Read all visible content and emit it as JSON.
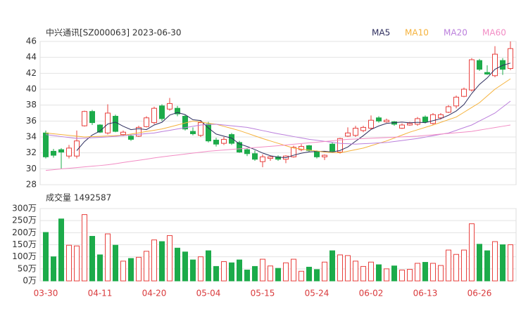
{
  "chart_data": {
    "type": "candlestick",
    "title": "中兴通讯[SZ000063] 2023-06-30",
    "categories": [
      "03-30",
      null,
      null,
      null,
      null,
      null,
      null,
      "04-11",
      null,
      null,
      null,
      null,
      null,
      null,
      "04-20",
      null,
      null,
      null,
      null,
      null,
      null,
      "05-04",
      null,
      null,
      null,
      null,
      null,
      null,
      "05-15",
      null,
      null,
      null,
      null,
      null,
      null,
      "05-24",
      null,
      null,
      null,
      null,
      null,
      null,
      "06-02",
      null,
      null,
      null,
      null,
      null,
      null,
      "06-13",
      null,
      null,
      null,
      null,
      null,
      null,
      "06-26",
      null,
      null,
      null,
      null
    ],
    "open": [
      34.5,
      32.2,
      32.4,
      31.6,
      31.6,
      35.4,
      37.2,
      35.5,
      34.5,
      36.6,
      34.3,
      34.1,
      34.1,
      35.3,
      35.8,
      37.9,
      37.5,
      37.6,
      36.6,
      34.7,
      34.2,
      35.6,
      33.6,
      33.2,
      34.3,
      33.3,
      32.4,
      31.9,
      30.9,
      31.3,
      31.5,
      31.2,
      31.5,
      32.4,
      32.9,
      32.2,
      31.5,
      33.1,
      32.1,
      34.1,
      34.2,
      34.8,
      35.1,
      36.4,
      35.9,
      35.9,
      35.1,
      35.5,
      35.6,
      36.5,
      35.7,
      36.4,
      37.1,
      37.9,
      39.1,
      39.9,
      43.6,
      42.1,
      41.7,
      43.6,
      42.6
    ],
    "high": [
      34.8,
      32.5,
      32.6,
      33.0,
      34.8,
      37.3,
      37.4,
      35.6,
      38.1,
      36.8,
      34.8,
      34.3,
      35.4,
      36.6,
      37.8,
      38.1,
      38.9,
      37.9,
      36.8,
      35.2,
      36.1,
      35.9,
      33.9,
      34.0,
      34.5,
      33.5,
      32.6,
      32.3,
      31.8,
      31.6,
      31.7,
      31.7,
      32.9,
      33.1,
      33.0,
      32.3,
      31.8,
      33.3,
      33.9,
      35.2,
      35.4,
      35.4,
      36.7,
      36.6,
      36.3,
      36.0,
      35.7,
      35.9,
      36.5,
      36.7,
      37.0,
      37.0,
      38.0,
      39.2,
      40.2,
      43.9,
      43.8,
      43.0,
      45.4,
      43.9,
      46.0
    ],
    "low": [
      31.3,
      31.4,
      30.0,
      31.3,
      31.3,
      35.3,
      35.5,
      34.5,
      34.3,
      34.6,
      34.1,
      33.5,
      34.0,
      35.2,
      35.6,
      36.0,
      37.3,
      36.6,
      34.8,
      34.2,
      34.0,
      33.3,
      32.8,
      33.0,
      33.0,
      32.0,
      31.6,
      31.0,
      30.2,
      31.0,
      31.0,
      30.7,
      31.4,
      32.2,
      32.1,
      31.3,
      31.1,
      32.0,
      31.9,
      34.0,
      34.0,
      34.6,
      34.9,
      35.8,
      35.8,
      35.4,
      35.0,
      35.4,
      35.4,
      35.7,
      35.5,
      36.2,
      37.0,
      37.6,
      39.0,
      39.7,
      42.3,
      41.8,
      41.5,
      41.8,
      42.4
    ],
    "close": [
      31.5,
      31.7,
      32.1,
      32.6,
      33.5,
      37.2,
      35.8,
      34.6,
      37.0,
      34.7,
      34.6,
      33.7,
      35.2,
      36.4,
      37.6,
      36.3,
      38.2,
      36.9,
      35.0,
      34.4,
      35.8,
      33.5,
      33.1,
      33.7,
      33.2,
      32.1,
      31.9,
      31.2,
      31.5,
      31.5,
      31.2,
      31.6,
      32.7,
      32.8,
      32.3,
      31.5,
      31.7,
      32.2,
      33.8,
      34.5,
      35.1,
      35.2,
      36.1,
      36.0,
      36.1,
      35.6,
      35.5,
      35.7,
      36.3,
      35.9,
      36.8,
      36.8,
      37.8,
      39.0,
      40.0,
      43.7,
      42.5,
      41.9,
      44.4,
      42.5,
      45.1
    ],
    "up_color": "#e8413e",
    "down_color": "#1cab4a",
    "ylim": [
      28,
      46
    ],
    "yticks": [
      28,
      30,
      32,
      34,
      36,
      38,
      40,
      42,
      44,
      46
    ],
    "grid": true,
    "series": [
      {
        "name": "MA5",
        "color": "#2e2e5e",
        "values": [
          null,
          null,
          null,
          null,
          32.28,
          33.42,
          34.24,
          34.74,
          35.62,
          35.86,
          35.34,
          34.92,
          35.04,
          34.92,
          35.5,
          35.84,
          36.74,
          37.08,
          36.8,
          36.16,
          36.06,
          35.12,
          34.36,
          34.1,
          33.86,
          33.12,
          32.8,
          32.42,
          31.98,
          31.64,
          31.46,
          31.4,
          31.7,
          31.96,
          32.12,
          32.18,
          32.2,
          32.1,
          32.3,
          32.74,
          33.46,
          34.16,
          34.94,
          35.38,
          35.7,
          35.8,
          35.86,
          35.78,
          35.84,
          35.8,
          36.04,
          36.3,
          36.72,
          37.26,
          38.08,
          39.46,
          40.6,
          41.42,
          42.5,
          43.0,
          43.28
        ]
      },
      {
        "name": "MA10",
        "color": "#f5b23c",
        "values": [
          34.5,
          34.4,
          34.3,
          34.2,
          34.1,
          34.0,
          34.04,
          34.08,
          34.12,
          34.16,
          34.2,
          34.36,
          34.52,
          34.68,
          34.84,
          35.0,
          35.25,
          35.5,
          35.75,
          36.0,
          35.87,
          35.73,
          35.6,
          35.33,
          35.07,
          34.8,
          34.47,
          34.13,
          33.8,
          33.5,
          33.2,
          32.9,
          32.6,
          32.48,
          32.35,
          32.23,
          32.1,
          32.05,
          32.0,
          32.2,
          32.4,
          32.6,
          32.9,
          33.2,
          33.5,
          33.87,
          34.23,
          34.6,
          34.9,
          35.2,
          35.5,
          35.83,
          36.17,
          36.5,
          37.1,
          37.7,
          38.3,
          39.15,
          40.0,
          40.65,
          41.3
        ]
      },
      {
        "name": "MA20",
        "color": "#bb7fdc",
        "values": [
          34.3,
          34.18,
          34.05,
          33.93,
          33.8,
          33.85,
          33.9,
          33.95,
          34.0,
          34.08,
          34.17,
          34.25,
          34.33,
          34.42,
          34.5,
          34.67,
          34.83,
          35.0,
          35.17,
          35.33,
          35.5,
          35.55,
          35.6,
          35.5,
          35.4,
          35.3,
          35.2,
          35.0,
          34.8,
          34.6,
          34.4,
          34.23,
          34.05,
          33.88,
          33.7,
          33.58,
          33.45,
          33.33,
          33.2,
          33.15,
          33.1,
          33.15,
          33.2,
          33.25,
          33.3,
          33.43,
          33.55,
          33.68,
          33.8,
          33.98,
          34.15,
          34.33,
          34.5,
          34.83,
          35.17,
          35.5,
          36.0,
          36.5,
          37.0,
          37.75,
          38.5
        ]
      },
      {
        "name": "MA60",
        "color": "#f28cc4",
        "values": [
          29.8,
          29.89,
          29.98,
          30.06,
          30.15,
          30.24,
          30.33,
          30.41,
          30.5,
          30.64,
          30.79,
          30.93,
          31.07,
          31.21,
          31.36,
          31.5,
          31.62,
          31.73,
          31.85,
          31.97,
          32.08,
          32.2,
          32.28,
          32.36,
          32.43,
          32.51,
          32.59,
          32.67,
          32.74,
          32.82,
          32.9,
          32.99,
          33.08,
          33.17,
          33.26,
          33.34,
          33.43,
          33.52,
          33.61,
          33.7,
          33.74,
          33.79,
          33.83,
          33.88,
          33.92,
          33.97,
          34.01,
          34.06,
          34.1,
          34.19,
          34.27,
          34.36,
          34.44,
          34.53,
          34.61,
          34.7,
          34.86,
          35.02,
          35.18,
          35.34,
          35.5
        ]
      }
    ],
    "volume": {
      "title": "成交量 1492587",
      "values": [
        201,
        100,
        257,
        148,
        145,
        275,
        185,
        108,
        195,
        148,
        82,
        93,
        98,
        123,
        170,
        163,
        188,
        136,
        120,
        87,
        100,
        125,
        60,
        80,
        75,
        87,
        45,
        60,
        90,
        62,
        52,
        75,
        90,
        40,
        57,
        47,
        78,
        125,
        108,
        105,
        82,
        60,
        78,
        67,
        50,
        62,
        45,
        48,
        73,
        77,
        73,
        64,
        128,
        110,
        128,
        237,
        152,
        125,
        163,
        150,
        150
      ],
      "ylim": [
        0,
        300
      ],
      "yticks": [
        {
          "value": 0,
          "label": "0万"
        },
        {
          "value": 50,
          "label": "50万"
        },
        {
          "value": 100,
          "label": "100万"
        },
        {
          "value": 150,
          "label": "150万"
        },
        {
          "value": 200,
          "label": "200万"
        },
        {
          "value": 250,
          "label": "250万"
        },
        {
          "value": 300,
          "label": "300万"
        }
      ]
    }
  }
}
